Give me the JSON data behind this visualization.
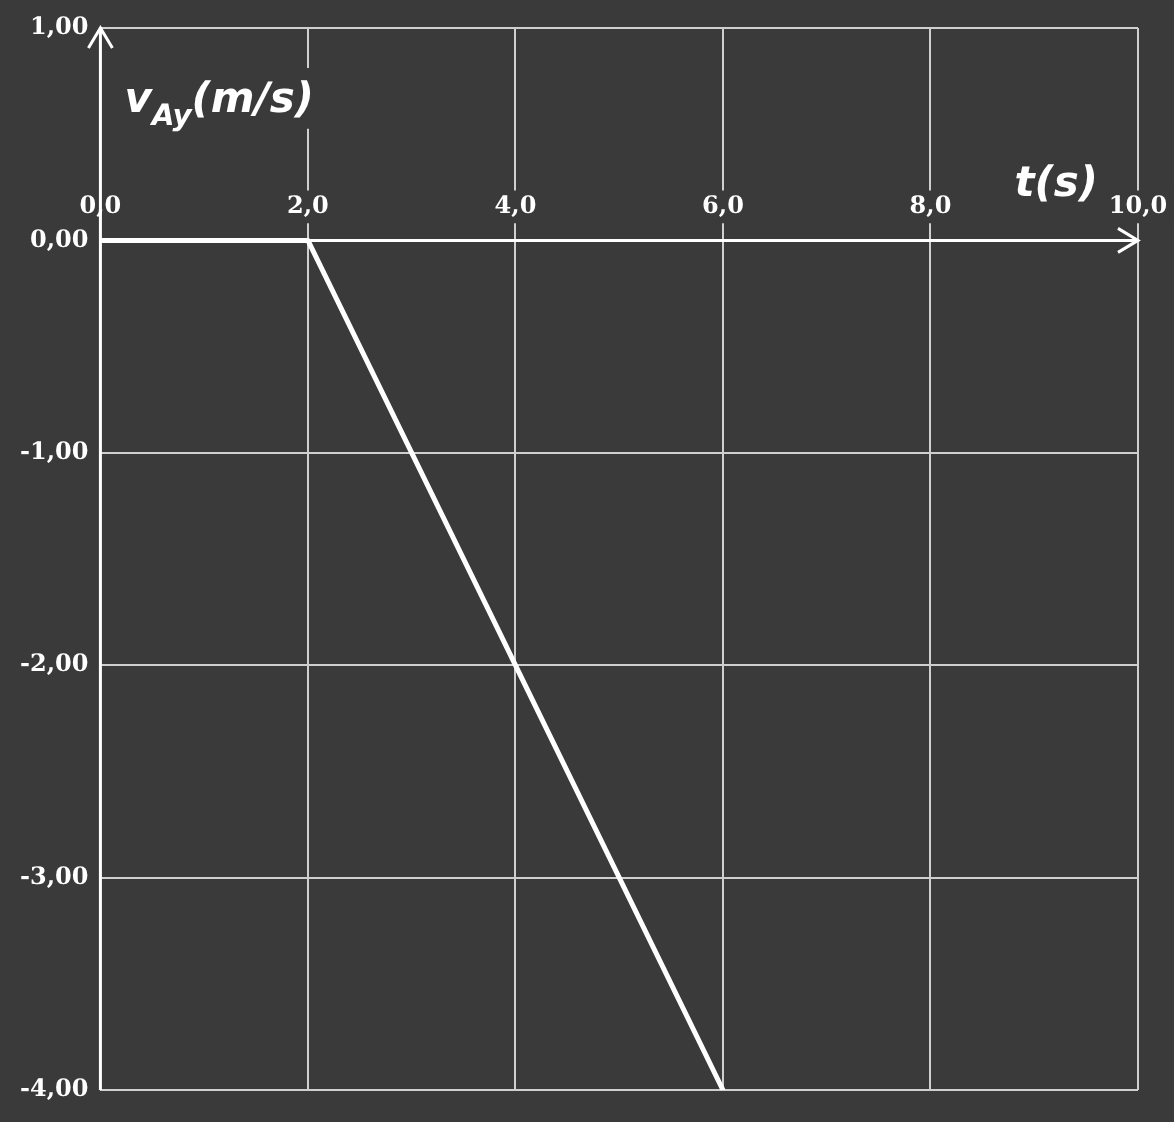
{
  "chart_data": {
    "type": "line",
    "xlabel": "t(s)",
    "ylabel": "v$_{Ay}$(m/s)",
    "x": [
      0,
      2,
      6
    ],
    "series": [
      {
        "color": "#ffffff",
        "values": [
          0,
          0,
          -4
        ]
      }
    ],
    "xlim": [
      0,
      10
    ],
    "xticks": [
      {
        "value": 0,
        "label": "0,0"
      },
      {
        "value": 2,
        "label": "2,0"
      },
      {
        "value": 4,
        "label": "4,0"
      },
      {
        "value": 6,
        "label": "6,0"
      },
      {
        "value": 8,
        "label": "8,0"
      },
      {
        "value": 10,
        "label": "10,0"
      }
    ],
    "ylim": [
      -4,
      1
    ],
    "yticks": [
      {
        "value": -4,
        "label": "-4,00"
      },
      {
        "value": -3,
        "label": "-3,00"
      },
      {
        "value": -2,
        "label": "-2,00"
      },
      {
        "value": -1,
        "label": "-1,00"
      },
      {
        "value": 0,
        "label": "0,00"
      },
      {
        "value": 1,
        "label": "1,00"
      }
    ],
    "grid": true,
    "legend": false,
    "marker": "none",
    "line_style": "solid"
  }
}
